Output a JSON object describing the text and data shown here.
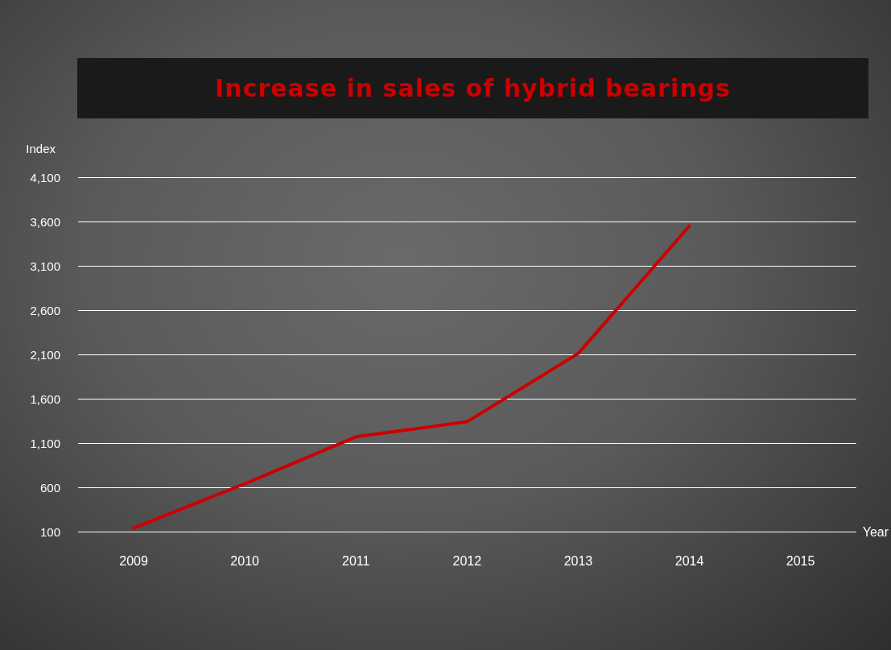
{
  "chart_data": {
    "type": "line",
    "title": "Increase in sales of hybrid bearings",
    "xlabel": "Year",
    "ylabel": "Index",
    "categories": [
      "2009",
      "2010",
      "2011",
      "2012",
      "2013",
      "2014",
      "2015"
    ],
    "series": [
      {
        "color": "#cc0000",
        "values": [
          140,
          640,
          1170,
          1340,
          2110,
          3550,
          null
        ]
      }
    ],
    "ylim": [
      100,
      4100
    ],
    "yticks": [
      100,
      600,
      {
        "value": 1100,
        "label": "1,100"
      },
      {
        "value": 1600,
        "label": "1,600"
      },
      {
        "value": 2100,
        "label": "2,100"
      },
      {
        "value": 2600,
        "label": "2,600"
      },
      {
        "value": 3100,
        "label": "3,100"
      },
      {
        "value": 3600,
        "label": "3,600"
      },
      {
        "value": 4100,
        "label": "4,100"
      }
    ],
    "grid": "y",
    "marker": "none",
    "line_style": "solid"
  }
}
